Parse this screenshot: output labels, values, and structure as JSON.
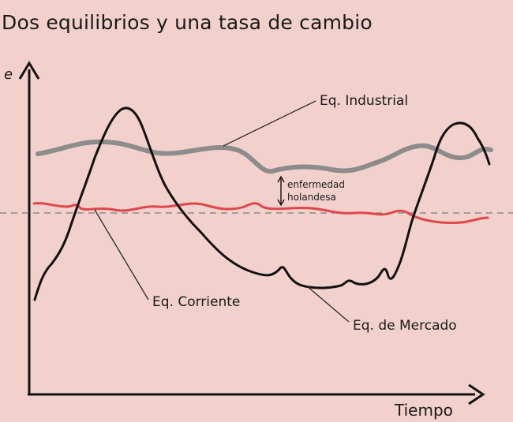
{
  "title": "Dos equilibrios y una tasa de cambio",
  "axes": {
    "y_label": "e",
    "x_label": "Tiempo"
  },
  "curves": [
    {
      "name": "Eq. Industrial",
      "color": "#8a8a8a"
    },
    {
      "name": "Eq. Corriente",
      "color": "#e0474c"
    },
    {
      "name": "Eq. de Mercado",
      "color": "#111111"
    }
  ],
  "annotation": {
    "line1": "enfermedad",
    "line2": "holandesa"
  },
  "reference_line": {
    "style": "dashed",
    "color": "#8a8a8a"
  }
}
